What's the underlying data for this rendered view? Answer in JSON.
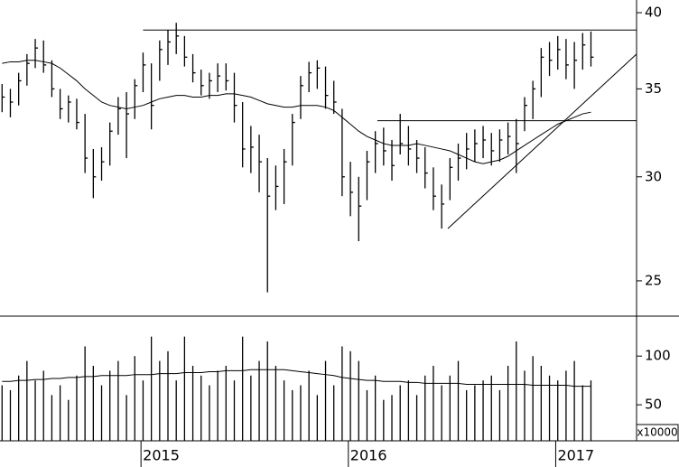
{
  "chart_data": [
    {
      "type": "ohlc",
      "log_scale": true,
      "color": "#000000",
      "xlim": [
        2014.32,
        2017.39
      ],
      "xticks": [
        2015,
        2016,
        2017
      ],
      "ylim": [
        23.5,
        40.9
      ],
      "yticks": [
        25,
        30,
        35,
        40
      ],
      "x": [
        2014.33,
        2014.37,
        2014.41,
        2014.45,
        2014.49,
        2014.53,
        2014.57,
        2014.61,
        2014.65,
        2014.69,
        2014.73,
        2014.77,
        2014.81,
        2014.85,
        2014.89,
        2014.93,
        2014.97,
        2015.01,
        2015.05,
        2015.09,
        2015.13,
        2015.17,
        2015.21,
        2015.25,
        2015.29,
        2015.33,
        2015.37,
        2015.41,
        2015.45,
        2015.49,
        2015.53,
        2015.57,
        2015.61,
        2015.65,
        2015.69,
        2015.73,
        2015.77,
        2015.81,
        2015.85,
        2015.89,
        2015.93,
        2015.97,
        2016.01,
        2016.05,
        2016.09,
        2016.13,
        2016.17,
        2016.21,
        2016.25,
        2016.29,
        2016.33,
        2016.37,
        2016.41,
        2016.45,
        2016.49,
        2016.53,
        2016.57,
        2016.61,
        2016.65,
        2016.69,
        2016.73,
        2016.77,
        2016.81,
        2016.85,
        2016.89,
        2016.93,
        2016.97,
        2017.01,
        2017.05,
        2017.09,
        2017.13,
        2017.17
      ],
      "high": [
        35.3,
        35.0,
        36.0,
        37.2,
        38.2,
        38.1,
        36.8,
        35.0,
        34.6,
        34.4,
        33.5,
        31.5,
        31.6,
        33.0,
        34.5,
        34.8,
        35.6,
        37.3,
        36.6,
        38.1,
        38.8,
        39.3,
        38.4,
        37.2,
        36.2,
        36.0,
        36.6,
        36.6,
        36.0,
        34.2,
        32.8,
        32.3,
        31.0,
        30.6,
        31.5,
        33.5,
        35.8,
        36.7,
        36.8,
        36.4,
        35.5,
        33.8,
        30.8,
        30.0,
        31.4,
        32.5,
        32.7,
        32.0,
        33.5,
        32.8,
        32.0,
        31.6,
        30.5,
        29.6,
        31.0,
        31.8,
        32.4,
        32.6,
        32.8,
        32.4,
        32.6,
        33.0,
        33.2,
        34.5,
        35.5,
        37.6,
        38.0,
        38.4,
        38.2,
        38.0,
        38.6,
        38.7
      ],
      "low": [
        33.6,
        33.3,
        34.0,
        35.2,
        36.3,
        36.0,
        34.5,
        33.2,
        33.0,
        32.6,
        30.2,
        28.9,
        29.8,
        30.6,
        32.3,
        31.0,
        33.2,
        34.8,
        32.6,
        35.5,
        36.5,
        37.2,
        36.4,
        35.4,
        34.6,
        34.4,
        34.8,
        34.9,
        33.0,
        30.5,
        30.2,
        29.2,
        24.5,
        28.3,
        28.6,
        30.6,
        33.2,
        34.8,
        35.0,
        33.8,
        33.5,
        29.0,
        28.0,
        26.8,
        28.8,
        30.2,
        30.6,
        29.8,
        31.2,
        30.6,
        30.2,
        29.4,
        28.3,
        27.4,
        28.8,
        29.8,
        30.4,
        30.8,
        31.0,
        30.6,
        30.8,
        31.2,
        30.2,
        32.5,
        33.2,
        34.5,
        35.8,
        36.2,
        35.6,
        35.0,
        36.2,
        36.4
      ],
      "close": [
        34.5,
        34.2,
        35.5,
        36.6,
        37.6,
        36.5,
        35.0,
        33.8,
        34.2,
        33.0,
        31.0,
        30.0,
        30.8,
        32.5,
        33.8,
        33.5,
        35.2,
        36.5,
        34.0,
        37.5,
        38.0,
        38.4,
        37.0,
        36.0,
        35.2,
        35.5,
        35.8,
        35.5,
        34.0,
        31.5,
        31.6,
        30.8,
        29.0,
        29.5,
        30.8,
        33.0,
        35.2,
        36.0,
        36.3,
        34.6,
        34.2,
        30.0,
        29.2,
        28.5,
        30.8,
        31.8,
        31.4,
        30.6,
        31.8,
        31.5,
        31.0,
        30.2,
        29.0,
        28.6,
        30.5,
        31.0,
        31.5,
        31.8,
        32.0,
        31.4,
        32.0,
        32.2,
        31.8,
        34.0,
        35.0,
        37.0,
        36.8,
        37.5,
        36.5,
        36.8,
        37.8,
        37.0
      ],
      "moving_average": [
        36.6,
        36.7,
        36.7,
        36.8,
        36.8,
        36.7,
        36.6,
        36.3,
        35.9,
        35.5,
        35.0,
        34.6,
        34.2,
        34.0,
        33.9,
        33.8,
        33.9,
        34.0,
        34.2,
        34.4,
        34.5,
        34.6,
        34.6,
        34.5,
        34.5,
        34.6,
        34.6,
        34.7,
        34.7,
        34.6,
        34.5,
        34.3,
        34.1,
        34.0,
        33.9,
        33.9,
        34.0,
        34.0,
        34.0,
        33.9,
        33.7,
        33.3,
        32.9,
        32.5,
        32.2,
        32.0,
        31.8,
        31.7,
        31.7,
        31.7,
        31.8,
        31.7,
        31.6,
        31.5,
        31.4,
        31.2,
        31.0,
        30.8,
        30.7,
        30.8,
        30.9,
        31.1,
        31.4,
        31.7,
        32.0,
        32.3,
        32.6,
        32.9,
        33.1,
        33.3,
        33.5,
        33.6
      ],
      "trendlines": [
        {
          "x": [
            2015.01,
            2017.39
          ],
          "values": [
            38.8,
            38.8
          ]
        },
        {
          "x": [
            2016.14,
            2017.39
          ],
          "values": [
            33.1,
            33.1
          ]
        },
        {
          "x": [
            2016.48,
            2017.39
          ],
          "values": [
            27.4,
            37.2
          ]
        }
      ]
    },
    {
      "type": "bar",
      "color": "#000000",
      "unit_label": "x10000",
      "ylim": [
        13,
        141
      ],
      "yticks": [
        50,
        100
      ],
      "values": [
        70,
        65,
        80,
        95,
        75,
        85,
        60,
        70,
        55,
        80,
        110,
        90,
        70,
        85,
        95,
        60,
        100,
        75,
        120,
        95,
        105,
        75,
        120,
        90,
        80,
        70,
        85,
        90,
        75,
        120,
        80,
        95,
        115,
        90,
        75,
        65,
        70,
        85,
        60,
        95,
        70,
        110,
        105,
        95,
        65,
        80,
        55,
        60,
        70,
        75,
        60,
        80,
        90,
        70,
        80,
        95,
        65,
        70,
        75,
        80,
        65,
        90,
        115,
        85,
        100,
        90,
        80,
        75,
        85,
        95,
        70,
        75
      ],
      "moving_average": [
        74,
        74,
        75,
        75,
        76,
        76,
        77,
        77,
        78,
        78,
        79,
        79,
        80,
        80,
        80,
        80,
        81,
        81,
        81,
        82,
        82,
        82,
        83,
        83,
        83,
        84,
        84,
        85,
        85,
        85,
        86,
        86,
        86,
        86,
        86,
        85,
        84,
        83,
        82,
        81,
        80,
        78,
        77,
        76,
        75,
        75,
        74,
        74,
        74,
        73,
        73,
        72,
        72,
        72,
        72,
        72,
        71,
        71,
        71,
        71,
        71,
        71,
        71,
        71,
        70,
        70,
        70,
        70,
        70,
        69,
        69,
        69
      ]
    }
  ]
}
